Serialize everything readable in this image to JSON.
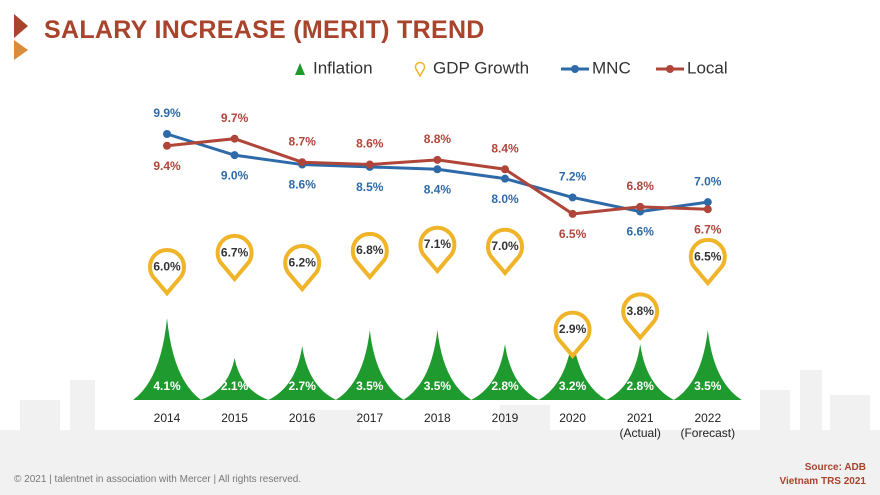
{
  "chart_data": {
    "type": "line",
    "title": "SALARY INCREASE (MERIT) TREND",
    "categories": [
      "2014",
      "2015",
      "2016",
      "2017",
      "2018",
      "2019",
      "2020",
      "2021\n(Actual)",
      "2022\n(Forecast)"
    ],
    "series": [
      {
        "name": "Inflation",
        "kind": "spike",
        "color": "#1f9a2f",
        "values": [
          4.1,
          2.1,
          2.7,
          3.5,
          3.5,
          2.8,
          3.2,
          2.8,
          3.5
        ],
        "value_labels": [
          "4.1%",
          "2.1%",
          "2.7%",
          "3.5%",
          "3.5%",
          "2.8%",
          "3.2%",
          "2.8%",
          "3.5%"
        ]
      },
      {
        "name": "GDP Growth",
        "kind": "pin",
        "color": "#f0b429",
        "values": [
          6.0,
          6.7,
          6.2,
          6.8,
          7.1,
          7.0,
          2.9,
          3.8,
          6.5
        ],
        "value_labels": [
          "6.0%",
          "6.7%",
          "6.2%",
          "6.8%",
          "7.1%",
          "7.0%",
          "2.9%",
          "3.8%",
          "6.5%"
        ]
      },
      {
        "name": "MNC",
        "kind": "line",
        "color": "#2e6aa8",
        "values": [
          9.9,
          9.0,
          8.6,
          8.5,
          8.4,
          8.0,
          7.2,
          6.6,
          7.0
        ],
        "value_labels": [
          "9.9%",
          "9.0%",
          "8.6%",
          "8.5%",
          "8.4%",
          "8.0%",
          "7.2%",
          "6.6%",
          "7.0%"
        ]
      },
      {
        "name": "Local",
        "kind": "line",
        "color": "#b0453a",
        "values": [
          9.4,
          9.7,
          8.7,
          8.6,
          8.8,
          8.4,
          6.5,
          6.8,
          6.7
        ],
        "value_labels": [
          "9.4%",
          "9.7%",
          "8.7%",
          "8.6%",
          "8.8%",
          "8.4%",
          "6.5%",
          "6.8%",
          "6.7%"
        ]
      }
    ],
    "footer": "© 2021 | talentnet in association with Mercer | All rights reserved.",
    "source": "Source: ADB",
    "source_note": "Vietnam TRS 2021"
  }
}
